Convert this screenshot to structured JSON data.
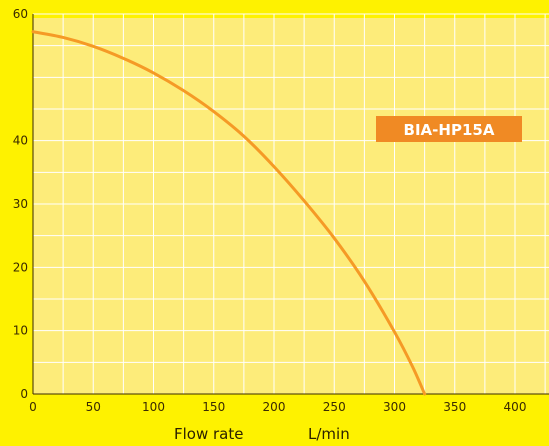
{
  "chart_data": {
    "type": "line",
    "title": "",
    "xlabel": "Flow rate",
    "xunit": "L/min",
    "ylabel": "",
    "xlim": [
      0,
      420
    ],
    "ylim": [
      0,
      60
    ],
    "x_ticks": [
      0,
      50,
      100,
      150,
      200,
      250,
      300,
      350,
      400
    ],
    "y_ticks": [
      0,
      10,
      20,
      30,
      40,
      60
    ],
    "grid": true,
    "series": [
      {
        "name": "BIA-HP15A",
        "x": [
          0,
          25,
          50,
          75,
          100,
          125,
          150,
          175,
          200,
          225,
          250,
          275,
          300,
          315,
          325
        ],
        "y": [
          57.2,
          56.3,
          54.9,
          53.0,
          50.7,
          47.9,
          44.6,
          40.7,
          35.9,
          30.5,
          24.6,
          17.8,
          9.8,
          4.3,
          0
        ]
      }
    ],
    "series_label": "BIA-HP15A"
  },
  "colors": {
    "background": "#fef200",
    "plot_background": "#fdec7a",
    "grid": "#ffffff",
    "curve": "#f59a26",
    "badge": "#f08a24",
    "axis": "#3a2a00"
  }
}
